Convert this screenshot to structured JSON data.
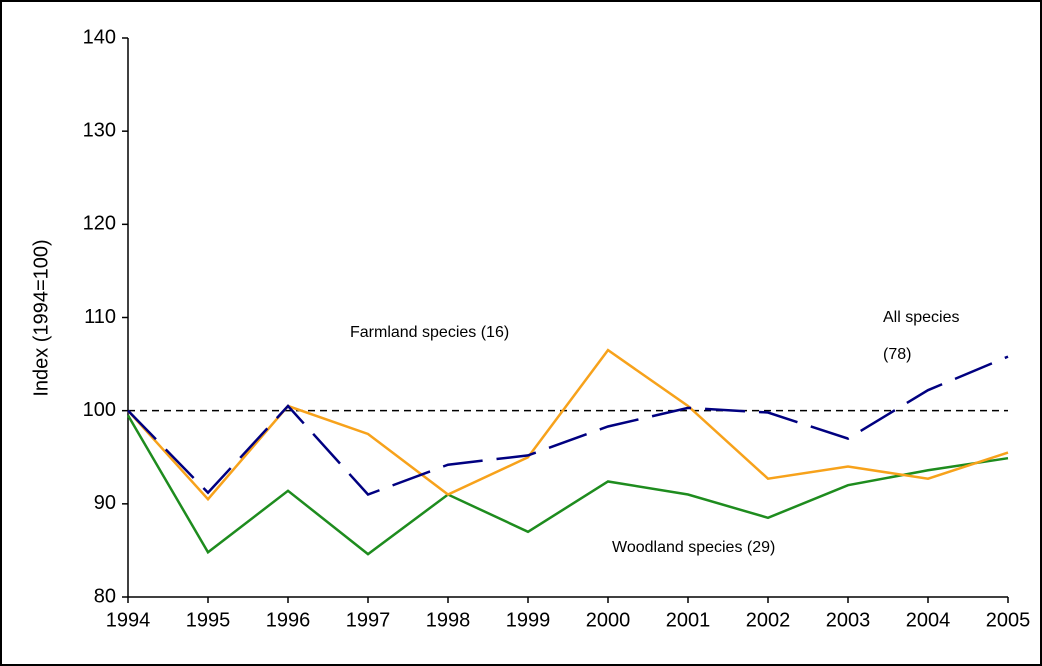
{
  "chart_data": {
    "type": "line",
    "y_label": "Index (1994=100)",
    "x": [
      1994,
      1995,
      1996,
      1997,
      1998,
      1999,
      2000,
      2001,
      2002,
      2003,
      2004,
      2005
    ],
    "xlim": [
      1994,
      2005
    ],
    "xticks": [
      1994,
      1995,
      1996,
      1997,
      1998,
      1999,
      2000,
      2001,
      2002,
      2003,
      2004,
      2005
    ],
    "ylim": [
      80,
      140
    ],
    "yticks": [
      80,
      90,
      100,
      110,
      120,
      130,
      140
    ],
    "reference_line": 100,
    "series": [
      {
        "color": "#000080",
        "dashed": true,
        "values": [
          100,
          91.2,
          100.5,
          91,
          94.2,
          95.2,
          98.3,
          100.3,
          99.8,
          97,
          102.2,
          105.8
        ]
      },
      {
        "color": "#f7a21b",
        "dashed": false,
        "values": [
          100,
          90.5,
          100.5,
          97.5,
          91,
          95,
          106.5,
          100.5,
          92.7,
          94,
          92.7,
          95.5
        ]
      },
      {
        "color": "#1e8c1e",
        "dashed": false,
        "values": [
          99.5,
          84.8,
          91.4,
          84.6,
          91,
          87,
          92.4,
          91,
          88.5,
          92,
          93.6,
          94.9
        ]
      }
    ],
    "annotations": [
      "Farmland species (16)",
      "All species",
      "(78)",
      "Woodland species (29)"
    ]
  }
}
